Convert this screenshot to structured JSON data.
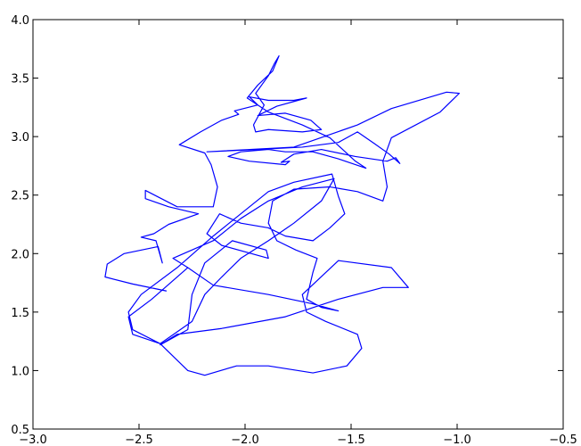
{
  "chart_data": {
    "type": "line",
    "color": "#0000ff",
    "x": [
      -2.37,
      -2.53,
      -2.66,
      -2.65,
      -2.57,
      -2.41,
      -2.39,
      -2.42,
      -2.49,
      -2.43,
      -2.36,
      -2.22,
      -2.36,
      -2.47,
      -2.47,
      -2.32,
      -2.15,
      -2.13,
      -2.16,
      -2.19,
      -2.31,
      -2.21,
      -2.11,
      -2.03,
      -2.05,
      -1.94,
      -1.98,
      -1.89,
      -1.77,
      -1.71,
      -1.85,
      -1.94,
      -1.81,
      -1.69,
      -1.64,
      -1.73,
      -1.89,
      -1.95,
      -1.96,
      -1.91,
      -1.95,
      -1.89,
      -1.86,
      -1.84,
      -1.87,
      -1.94,
      -1.99,
      -1.89,
      -1.73,
      -1.6,
      -1.48,
      -1.43,
      -1.56,
      -1.68,
      -1.81,
      -1.89,
      -2.02,
      -2.08,
      -1.98,
      -1.81,
      -1.79,
      -1.83,
      -1.77,
      -1.64,
      -1.48,
      -1.33,
      -1.29,
      -1.27,
      -1.32,
      -1.39,
      -1.47,
      -1.56,
      -1.73,
      -1.94,
      -2.18,
      -1.77,
      -1.47,
      -1.31,
      -1.05,
      -0.99,
      -1.08,
      -1.31,
      -1.35,
      -1.33,
      -1.35,
      -1.47,
      -1.6,
      -1.77,
      -1.87,
      -1.89,
      -1.85,
      -1.76,
      -1.66,
      -1.68,
      -1.71,
      -1.64,
      -1.56,
      -1.68,
      -1.89,
      -2.15,
      -2.27,
      -2.34,
      -2.15,
      -2.02,
      -1.89,
      -1.73,
      -1.58,
      -1.64,
      -1.77,
      -1.89,
      -2.02,
      -2.11,
      -2.19,
      -2.25,
      -2.4,
      -2.53,
      -2.55,
      -2.49,
      -2.32,
      -2.15,
      -2.02,
      -1.89,
      -1.77,
      -1.59,
      -1.56,
      -1.53,
      -1.6,
      -1.68,
      -1.81,
      -1.89,
      -2.02,
      -2.12,
      -2.18,
      -2.11,
      -1.89,
      -1.9,
      -2.06,
      -2.19,
      -2.25,
      -2.27,
      -2.4,
      -2.32,
      -2.11,
      -1.81,
      -1.56,
      -1.35,
      -1.23,
      -1.31,
      -1.56,
      -1.73,
      -1.71,
      -1.62,
      -1.47,
      -1.45,
      -1.52,
      -1.68,
      -1.89,
      -2.04,
      -2.19,
      -2.27,
      -2.4,
      -2.53,
      -2.55,
      -2.44,
      -2.27
    ],
    "y": [
      1.68,
      1.74,
      1.8,
      1.91,
      2.0,
      2.06,
      1.92,
      2.11,
      2.14,
      2.17,
      2.25,
      2.34,
      2.4,
      2.47,
      2.54,
      2.4,
      2.4,
      2.57,
      2.76,
      2.86,
      2.93,
      3.04,
      3.14,
      3.19,
      3.22,
      3.27,
      3.34,
      3.31,
      3.31,
      3.33,
      3.26,
      3.18,
      3.2,
      3.14,
      3.06,
      3.04,
      3.06,
      3.04,
      3.1,
      3.27,
      3.37,
      3.52,
      3.63,
      3.69,
      3.56,
      3.44,
      3.33,
      3.21,
      3.1,
      2.99,
      2.79,
      2.73,
      2.81,
      2.87,
      2.87,
      2.89,
      2.87,
      2.83,
      2.79,
      2.76,
      2.79,
      2.78,
      2.85,
      2.89,
      2.83,
      2.79,
      2.82,
      2.77,
      2.85,
      2.94,
      3.04,
      2.95,
      2.91,
      2.89,
      2.87,
      2.91,
      3.1,
      3.24,
      3.38,
      3.37,
      3.21,
      2.99,
      2.79,
      2.57,
      2.45,
      2.53,
      2.57,
      2.55,
      2.45,
      2.26,
      2.11,
      2.03,
      1.96,
      1.84,
      1.61,
      1.54,
      1.51,
      1.57,
      1.65,
      1.73,
      1.88,
      1.96,
      2.11,
      2.3,
      2.45,
      2.57,
      2.64,
      2.45,
      2.26,
      2.11,
      1.96,
      1.8,
      1.65,
      1.42,
      1.23,
      1.35,
      1.5,
      1.65,
      1.88,
      2.15,
      2.34,
      2.53,
      2.61,
      2.68,
      2.49,
      2.34,
      2.22,
      2.11,
      2.15,
      2.22,
      2.26,
      2.34,
      2.17,
      2.07,
      1.96,
      2.03,
      2.11,
      1.92,
      1.65,
      1.35,
      1.22,
      1.31,
      1.36,
      1.46,
      1.61,
      1.71,
      1.71,
      1.88,
      1.94,
      1.65,
      1.5,
      1.42,
      1.31,
      1.19,
      1.04,
      0.98,
      1.04,
      1.04,
      0.96,
      1.0,
      1.23,
      1.31,
      1.46,
      1.61,
      1.88
    ],
    "xlim": [
      -3.0,
      -0.5
    ],
    "ylim": [
      0.5,
      4.0
    ],
    "xticks": [
      {
        "value": -3.0,
        "label": "−3.0"
      },
      {
        "value": -2.5,
        "label": "−2.5"
      },
      {
        "value": -2.0,
        "label": "−2.0"
      },
      {
        "value": -1.5,
        "label": "−1.5"
      },
      {
        "value": -1.0,
        "label": "−1.0"
      },
      {
        "value": -0.5,
        "label": "−0.5"
      }
    ],
    "yticks": [
      0.5,
      {
        "value": 1.0,
        "label": "1.0"
      },
      1.5,
      {
        "value": 2.0,
        "label": "2.0"
      },
      2.5,
      {
        "value": 3.0,
        "label": "3.0"
      },
      3.5,
      {
        "value": 4.0,
        "label": "4.0"
      }
    ]
  }
}
